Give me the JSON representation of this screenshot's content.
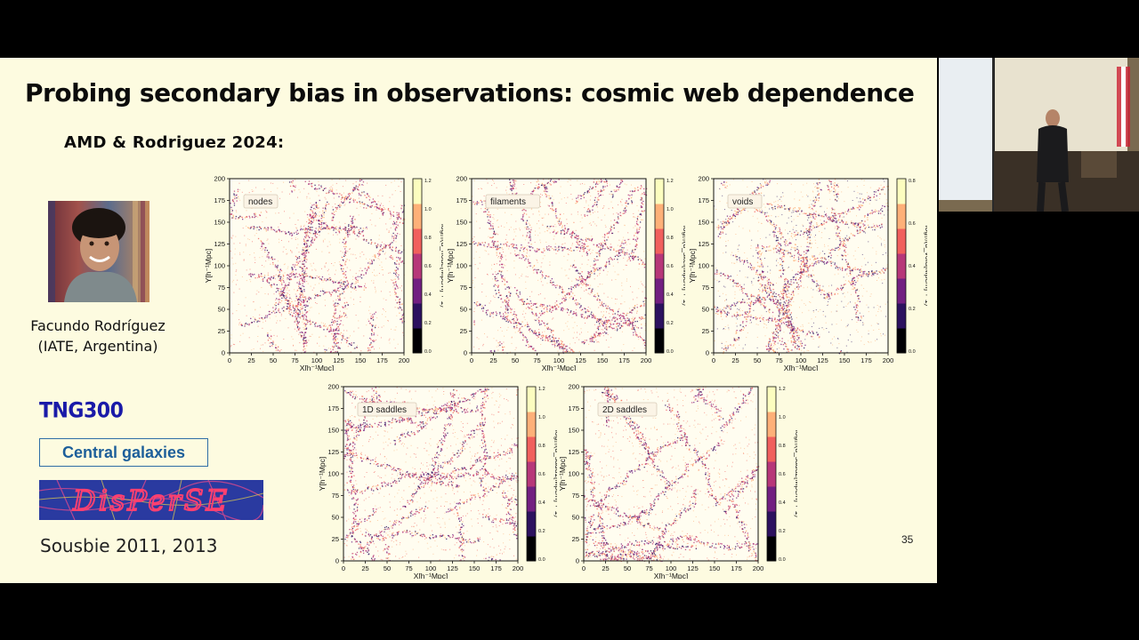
{
  "slide": {
    "title": "Probing secondary bias in observations: cosmic web dependence",
    "subtitle": "AMD & Rodriguez 2024:",
    "person_name": "Facundo Rodríguez",
    "person_affiliation": "(IATE, Argentina)",
    "sim_label": "TNG300",
    "sample_label": "Central galaxies",
    "logo_text": "DisPerSE",
    "reference": "Sousbie 2011, 2013",
    "page_number": "35"
  },
  "panel_axes": {
    "xlabel": "X[h⁻¹Mpc]",
    "ylabel": "Y[h⁻¹Mpc]",
    "ticks": [
      "0",
      "25",
      "50",
      "75",
      "100",
      "125",
      "150",
      "175",
      "200"
    ]
  },
  "panels": [
    {
      "label": "nodes",
      "cbar_label": "log₁₀(d_node[Mpc/h] + 1)",
      "cbar_ticks": [
        "0.0",
        "0.2",
        "0.4",
        "0.6",
        "0.8",
        "1.0",
        "1.2"
      ]
    },
    {
      "label": "filaments",
      "cbar_label": "log₁₀(d_skel[Mpc/h] + 1)",
      "cbar_ticks": [
        "0.0",
        "0.2",
        "0.4",
        "0.6",
        "0.8",
        "1.0",
        "1.2"
      ]
    },
    {
      "label": "voids",
      "cbar_label": "log₁₀(d_void[Mpc/h] + 1)",
      "cbar_ticks": [
        "0.0",
        "0.2",
        "0.4",
        "0.6",
        "0.8"
      ]
    },
    {
      "label": "1D saddles",
      "cbar_label": "log₁₀(d_sadd1[Mpc/h] + 1)",
      "cbar_ticks": [
        "0.0",
        "0.2",
        "0.4",
        "0.6",
        "0.8",
        "1.0",
        "1.2"
      ]
    },
    {
      "label": "2D saddles",
      "cbar_label": "log₁₀(d_sadd2[Mpc/h] + 1)",
      "cbar_ticks": [
        "0.0",
        "0.2",
        "0.4",
        "0.6",
        "0.8",
        "1.0",
        "1.2"
      ]
    }
  ],
  "colors": {
    "slide_bg": "#fdfbe0",
    "accent_blue": "#1a1aa8",
    "box_blue": "#1d5f9a",
    "colormap": [
      "#000004",
      "#2c115f",
      "#721f81",
      "#b73779",
      "#f1605d",
      "#feb078",
      "#fcfdbf"
    ]
  }
}
